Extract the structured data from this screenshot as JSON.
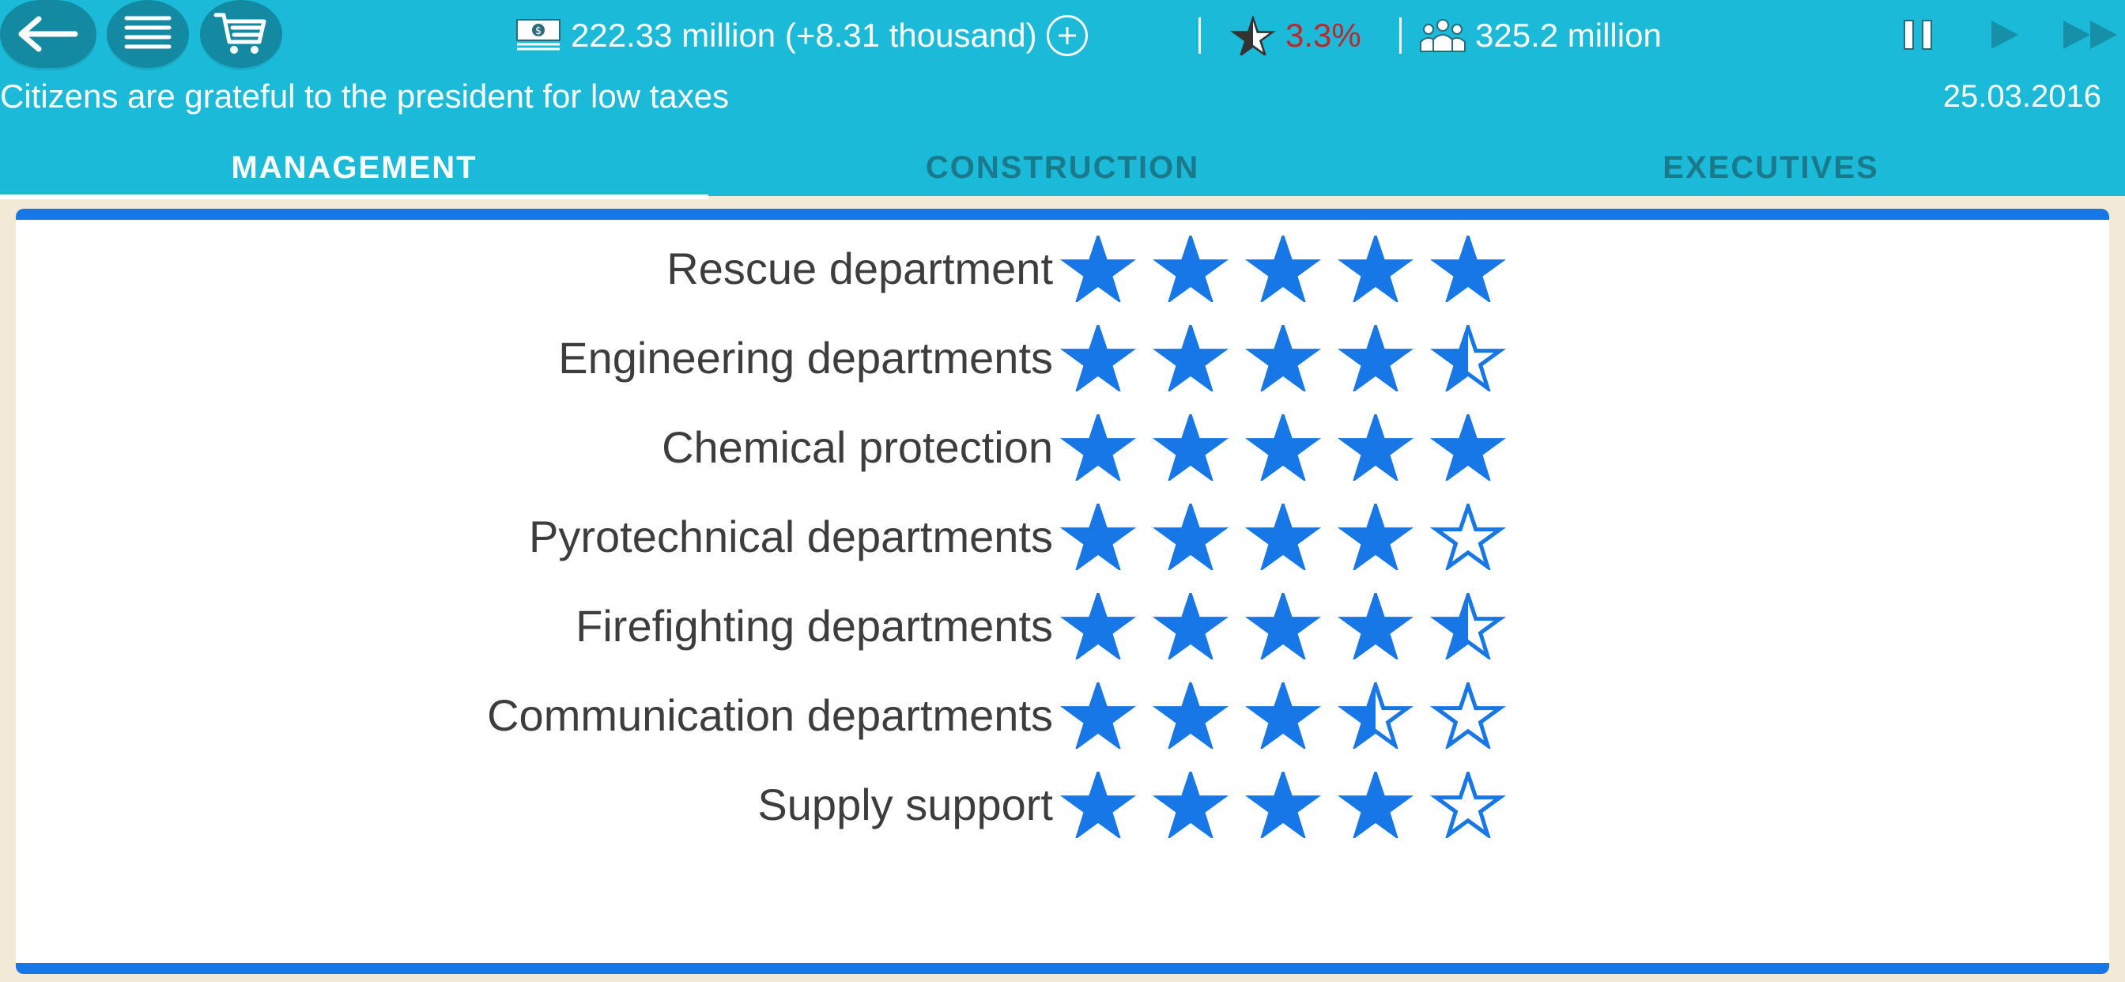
{
  "topbar": {
    "money": "222.33 million (+8.31 thousand)",
    "rating": "3.3%",
    "population": "325.2 million",
    "news": "Citizens are grateful to the president for low taxes",
    "date": "25.03.2016"
  },
  "icons": {
    "back": "arrow-left-icon",
    "menu": "list-icon",
    "shop": "cart-icon",
    "money": "banknote-icon",
    "add": "plus-circle-icon",
    "rating": "star-rating-icon",
    "population": "people-icon",
    "pause": "pause-icon",
    "play": "play-icon",
    "fast": "fast-forward-icon"
  },
  "tabs": [
    {
      "label": "MANAGEMENT",
      "active": true
    },
    {
      "label": "CONSTRUCTION",
      "active": false
    },
    {
      "label": "EXECUTIVES",
      "active": false
    }
  ],
  "colors": {
    "header": "#1bbad8",
    "star": "#1777e6",
    "rating_text": "#c0262a",
    "background": "#f2ead7"
  },
  "departments": [
    {
      "name": "Rescue department",
      "rating": 5
    },
    {
      "name": "Engineering departments",
      "rating": 4.5
    },
    {
      "name": "Chemical protection",
      "rating": 5
    },
    {
      "name": "Pyrotechnical departments",
      "rating": 4
    },
    {
      "name": "Firefighting departments",
      "rating": 4.5
    },
    {
      "name": "Communication departments",
      "rating": 3.5
    },
    {
      "name": "Supply support",
      "rating": 4
    }
  ]
}
